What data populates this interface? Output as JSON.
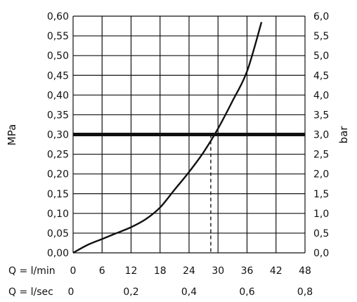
{
  "chart_data": {
    "type": "line",
    "ylabel_left": "MPa",
    "ylabel_right": "bar",
    "ylim": [
      0,
      0.6
    ],
    "xlim": [
      0,
      48
    ],
    "y_ticks_left": [
      "0,00",
      "0,05",
      "0,10",
      "0,15",
      "0,20",
      "0,25",
      "0,30",
      "0,35",
      "0,40",
      "0,45",
      "0,50",
      "0,55",
      "0,60"
    ],
    "y_ticks_right": [
      "0,0",
      "0,5",
      "1,0",
      "1,5",
      "2,0",
      "2,5",
      "3,0",
      "3,5",
      "4,0",
      "4,5",
      "5,0",
      "5,5",
      "6,0"
    ],
    "x_axes": [
      {
        "label": "Q = l/min",
        "ticks": [
          {
            "value": 0,
            "text": "0"
          },
          {
            "value": 6,
            "text": "6"
          },
          {
            "value": 12,
            "text": "12"
          },
          {
            "value": 18,
            "text": "18"
          },
          {
            "value": 24,
            "text": "24"
          },
          {
            "value": 30,
            "text": "30"
          },
          {
            "value": 36,
            "text": "36"
          },
          {
            "value": 42,
            "text": "42"
          },
          {
            "value": 48,
            "text": "48"
          }
        ]
      },
      {
        "label": "Q = l/sec",
        "ticks": [
          {
            "value": 0,
            "text": "0"
          },
          {
            "value": 12,
            "text": "0,2"
          },
          {
            "value": 24,
            "text": "0,4"
          },
          {
            "value": 36,
            "text": "0,6"
          },
          {
            "value": 48,
            "text": "0,8"
          }
        ]
      }
    ],
    "grid": true,
    "series": [
      {
        "x": [
          0,
          3,
          6,
          9,
          12,
          15,
          18,
          21,
          24,
          27,
          30,
          33,
          36,
          39
        ],
        "y": [
          0.0,
          0.02,
          0.035,
          0.05,
          0.065,
          0.085,
          0.115,
          0.16,
          0.205,
          0.255,
          0.315,
          0.385,
          0.46,
          0.585
        ]
      }
    ],
    "reference_line": {
      "y": 0.3,
      "x_at": 28.5
    }
  }
}
